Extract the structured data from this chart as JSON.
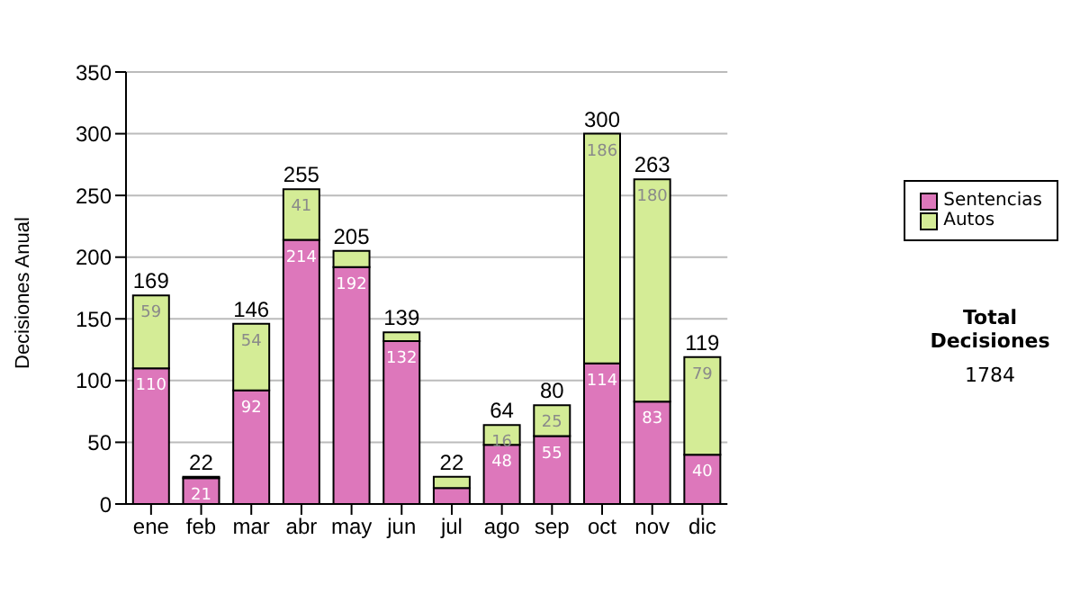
{
  "chart_data": {
    "type": "bar",
    "stacked": true,
    "ylabel": "Decisiones Anual",
    "categories": [
      "ene",
      "feb",
      "mar",
      "abr",
      "may",
      "jun",
      "jul",
      "ago",
      "sep",
      "oct",
      "nov",
      "dic"
    ],
    "series": [
      {
        "name": "Sentencias",
        "color": "#dd77bb",
        "values": [
          110,
          21,
          92,
          214,
          192,
          132,
          13,
          48,
          55,
          114,
          83,
          40
        ],
        "value_labels": [
          "110",
          "21",
          "92",
          "214",
          "192",
          "132",
          null,
          "48",
          "55",
          "114",
          "83",
          "40"
        ]
      },
      {
        "name": "Autos",
        "color": "#d4ec96",
        "values": [
          59,
          1,
          54,
          41,
          13,
          7,
          9,
          16,
          25,
          186,
          180,
          79
        ],
        "value_labels": [
          "59",
          null,
          "54",
          "41",
          null,
          null,
          null,
          "16",
          "25",
          "186",
          "180",
          "79"
        ]
      }
    ],
    "totals": [
      "169",
      "22",
      "146",
      "255",
      "205",
      "139",
      "22",
      "64",
      "80",
      "300",
      "263",
      "119"
    ],
    "ylim": [
      0,
      350
    ],
    "yticks": [
      0,
      50,
      100,
      150,
      200,
      250,
      300,
      350
    ],
    "grid": "y",
    "legend": "right",
    "annotations": [
      "Total Decisiones",
      "1784"
    ]
  }
}
